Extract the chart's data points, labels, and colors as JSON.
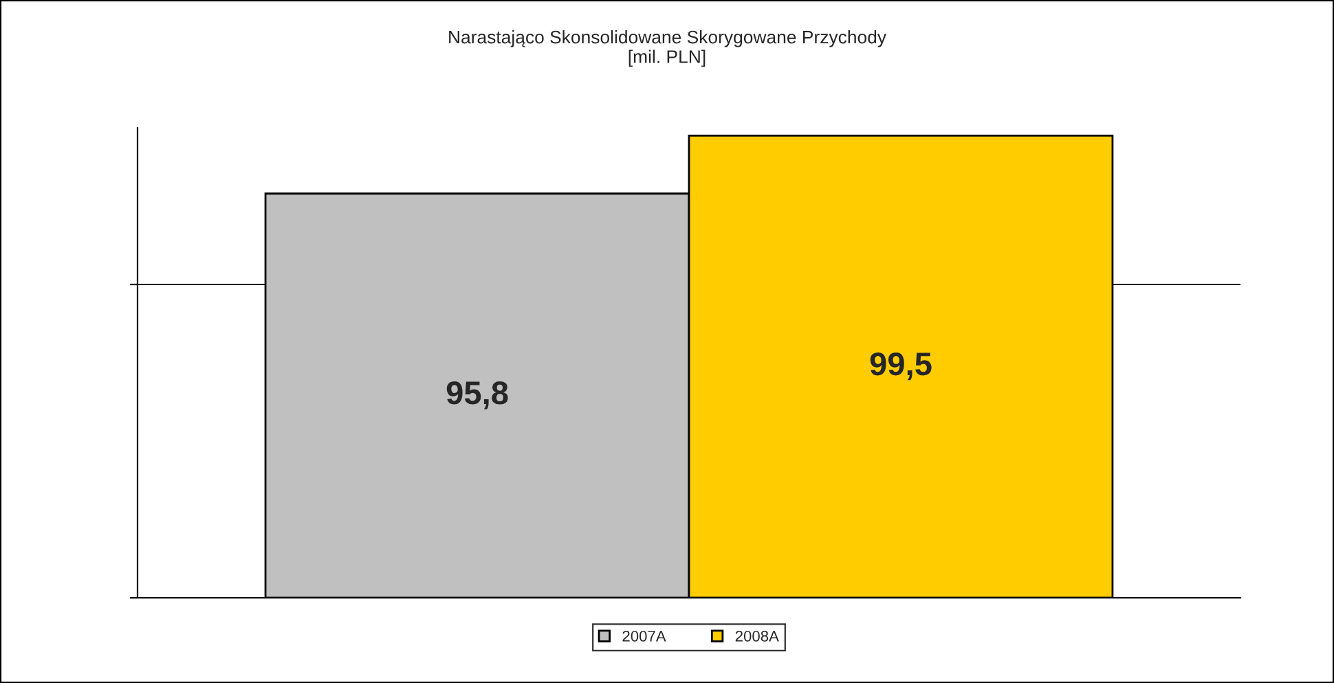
{
  "chart_data": {
    "type": "bar",
    "title": "Narastająco Skonsolidowane Skorygowane Przychody\n[mil. PLN]",
    "categories": [
      null
    ],
    "series": [
      {
        "name": "2007A",
        "color": "#c0c0c0",
        "values": [
          95.8
        ],
        "value_labels": [
          "95,8"
        ]
      },
      {
        "name": "2008A",
        "color": "#ffcc00",
        "values": [
          99.5
        ],
        "value_labels": [
          "99,5"
        ]
      }
    ],
    "ylim": [
      70,
      100
    ],
    "yticks": [
      {
        "value": 70,
        "label": null
      },
      {
        "value": 90,
        "label": null
      }
    ],
    "ref_lines": [
      {
        "axis": "y",
        "value": 90,
        "color": "#000000"
      }
    ],
    "legend": "bottom"
  }
}
